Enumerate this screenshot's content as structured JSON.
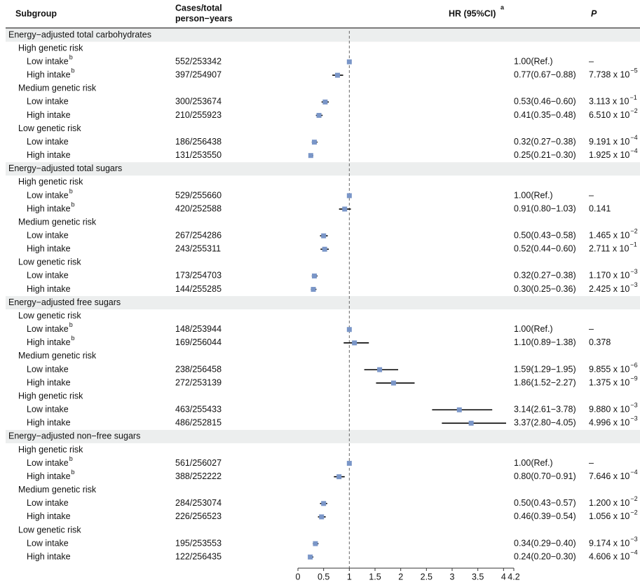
{
  "chart_data": {
    "type": "forest",
    "headers": {
      "subgroup": "Subgroup",
      "cases": [
        "Cases/total",
        "person−years"
      ],
      "hr": "HR (95%CI)",
      "hr_sup": "a",
      "p": "P"
    },
    "xlim": [
      0,
      4.2
    ],
    "xticks": [
      0,
      0.5,
      1,
      1.5,
      2,
      2.5,
      3,
      3.5,
      4,
      4.2
    ],
    "refline": 1,
    "color": "#7a96c8",
    "ci_color": "#000000",
    "sections": [
      {
        "title": "Energy−adjusted total carbohydrates",
        "groups": [
          {
            "title": "High genetic risk",
            "rows": [
              {
                "label": "Low intake",
                "sup": "b",
                "cases": "552/253342",
                "hr_text": "1.00(Ref.)",
                "p": "–",
                "hr": 1.0,
                "lo": null,
                "hi": null
              },
              {
                "label": "High intake",
                "sup": "b",
                "cases": "397/254907",
                "hr_text": "0.77(0.67−0.88)",
                "p": "7.738 x 10",
                "p_exp": "−5",
                "hr": 0.77,
                "lo": 0.67,
                "hi": 0.88
              }
            ]
          },
          {
            "title": "Medium genetic risk",
            "rows": [
              {
                "label": "Low intake",
                "cases": "300/253674",
                "hr_text": "0.53(0.46−0.60)",
                "p": "3.113 x 10",
                "p_exp": "−1",
                "hr": 0.53,
                "lo": 0.46,
                "hi": 0.6
              },
              {
                "label": "High intake",
                "cases": "210/255923",
                "hr_text": "0.41(0.35−0.48)",
                "p": "6.510 x 10",
                "p_exp": "−2",
                "hr": 0.41,
                "lo": 0.35,
                "hi": 0.48
              }
            ]
          },
          {
            "title": "Low genetic risk",
            "rows": [
              {
                "label": "Low intake",
                "cases": "186/256438",
                "hr_text": "0.32(0.27−0.38)",
                "p": "9.191 x 10",
                "p_exp": "−4",
                "hr": 0.32,
                "lo": 0.27,
                "hi": 0.38
              },
              {
                "label": "High intake",
                "cases": "131/253550",
                "hr_text": "0.25(0.21−0.30)",
                "p": "1.925 x 10",
                "p_exp": "−4",
                "hr": 0.25,
                "lo": 0.21,
                "hi": 0.3
              }
            ]
          }
        ]
      },
      {
        "title": "Energy−adjusted total sugars",
        "groups": [
          {
            "title": "High genetic risk",
            "rows": [
              {
                "label": "Low intake",
                "sup": "b",
                "cases": "529/255660",
                "hr_text": "1.00(Ref.)",
                "p": "–",
                "hr": 1.0,
                "lo": null,
                "hi": null
              },
              {
                "label": "High intake",
                "sup": "b",
                "cases": "420/252588",
                "hr_text": "0.91(0.80−1.03)",
                "p": "0.141",
                "hr": 0.91,
                "lo": 0.8,
                "hi": 1.03
              }
            ]
          },
          {
            "title": "Medium genetic risk",
            "rows": [
              {
                "label": "Low intake",
                "cases": "267/254286",
                "hr_text": "0.50(0.43−0.58)",
                "p": "1.465 x 10",
                "p_exp": "−2",
                "hr": 0.5,
                "lo": 0.43,
                "hi": 0.58
              },
              {
                "label": "High intake",
                "cases": "243/255311",
                "hr_text": "0.52(0.44−0.60)",
                "p": "2.711 x 10",
                "p_exp": "−1",
                "hr": 0.52,
                "lo": 0.44,
                "hi": 0.6
              }
            ]
          },
          {
            "title": "Low genetic risk",
            "rows": [
              {
                "label": "Low intake",
                "cases": "173/254703",
                "hr_text": "0.32(0.27−0.38)",
                "p": "1.170 x 10",
                "p_exp": "−3",
                "hr": 0.32,
                "lo": 0.27,
                "hi": 0.38
              },
              {
                "label": "High intake",
                "cases": "144/255285",
                "hr_text": "0.30(0.25−0.36)",
                "p": "2.425 x 10",
                "p_exp": "−3",
                "hr": 0.3,
                "lo": 0.25,
                "hi": 0.36
              }
            ]
          }
        ]
      },
      {
        "title": "Energy−adjusted free sugars",
        "groups": [
          {
            "title": "Low genetic risk",
            "rows": [
              {
                "label": "Low intake",
                "sup": "b",
                "cases": "148/253944",
                "hr_text": "1.00(Ref.)",
                "p": "–",
                "hr": 1.0,
                "lo": null,
                "hi": null
              },
              {
                "label": "High intake",
                "sup": "b",
                "cases": "169/256044",
                "hr_text": "1.10(0.89−1.38)",
                "p": "0.378",
                "hr": 1.1,
                "lo": 0.89,
                "hi": 1.38
              }
            ]
          },
          {
            "title": "Medium genetic risk",
            "rows": [
              {
                "label": "Low intake",
                "cases": "238/256458",
                "hr_text": "1.59(1.29−1.95)",
                "p": "9.855 x 10",
                "p_exp": "−6",
                "hr": 1.59,
                "lo": 1.29,
                "hi": 1.95
              },
              {
                "label": "High intake",
                "cases": "272/253139",
                "hr_text": "1.86(1.52−2.27)",
                "p": "1.375 x 10",
                "p_exp": "−9",
                "hr": 1.86,
                "lo": 1.52,
                "hi": 2.27
              }
            ]
          },
          {
            "title": "High genetic risk",
            "rows": [
              {
                "label": "Low intake",
                "cases": "463/255433",
                "hr_text": "3.14(2.61−3.78)",
                "p": "9.880 x 10",
                "p_exp": "−3",
                "hr": 3.14,
                "lo": 2.61,
                "hi": 3.78
              },
              {
                "label": "High intake",
                "cases": "486/252815",
                "hr_text": "3.37(2.80−4.05)",
                "p": "4.996 x 10",
                "p_exp": "−3",
                "hr": 3.37,
                "lo": 2.8,
                "hi": 4.05
              }
            ]
          }
        ]
      },
      {
        "title": "Energy−adjusted non−free sugars",
        "groups": [
          {
            "title": "High genetic risk",
            "rows": [
              {
                "label": "Low intake",
                "sup": "b",
                "cases": "561/256027",
                "hr_text": "1.00(Ref.)",
                "p": "–",
                "hr": 1.0,
                "lo": null,
                "hi": null
              },
              {
                "label": "High intake",
                "sup": "b",
                "cases": "388/252222",
                "hr_text": "0.80(0.70−0.91)",
                "p": "7.646 x 10",
                "p_exp": "−4",
                "hr": 0.8,
                "lo": 0.7,
                "hi": 0.91
              }
            ]
          },
          {
            "title": "Medium genetic risk",
            "rows": [
              {
                "label": "Low intake",
                "cases": "284/253074",
                "hr_text": "0.50(0.43−0.57)",
                "p": "1.200 x 10",
                "p_exp": "−2",
                "hr": 0.5,
                "lo": 0.43,
                "hi": 0.57
              },
              {
                "label": "High intake",
                "cases": "226/256523",
                "hr_text": "0.46(0.39−0.54)",
                "p": "1.056 x 10",
                "p_exp": "−2",
                "hr": 0.46,
                "lo": 0.39,
                "hi": 0.54
              }
            ]
          },
          {
            "title": "Low genetic risk",
            "rows": [
              {
                "label": "Low intake",
                "cases": "195/253553",
                "hr_text": "0.34(0.29−0.40)",
                "p": "9.174 x 10",
                "p_exp": "−3",
                "hr": 0.34,
                "lo": 0.29,
                "hi": 0.4
              },
              {
                "label": "High intake",
                "cases": "122/256435",
                "hr_text": "0.24(0.20−0.30)",
                "p": "4.606 x 10",
                "p_exp": "−4",
                "hr": 0.24,
                "lo": 0.2,
                "hi": 0.3
              }
            ]
          }
        ]
      }
    ]
  }
}
